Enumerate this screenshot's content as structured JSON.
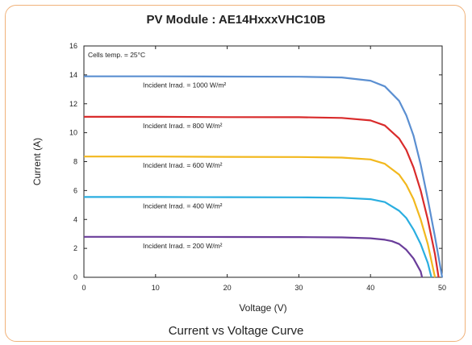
{
  "chart_data": {
    "type": "line",
    "title": "PV Module : AE14HxxxVHC10B",
    "caption": "Current vs Voltage Curve",
    "xlabel": "Voltage (V)",
    "ylabel": "Current (A)",
    "xlim": [
      0,
      50
    ],
    "ylim": [
      0,
      16
    ],
    "xticks": [
      0,
      10,
      20,
      30,
      40,
      50
    ],
    "yticks": [
      0,
      2,
      4,
      6,
      8,
      10,
      12,
      14,
      16
    ],
    "grid": false,
    "annotation": "Cells temp. = 25°C",
    "series": [
      {
        "name": "Incident Irrad. = 1000 W/m²",
        "color": "#5b8fd1",
        "isc": 13.9,
        "voc": 50.0,
        "x": [
          0,
          10,
          20,
          30,
          36,
          40,
          42,
          44,
          45,
          46,
          47,
          48,
          49,
          50
        ],
        "y": [
          13.9,
          13.9,
          13.88,
          13.87,
          13.82,
          13.6,
          13.2,
          12.2,
          11.2,
          9.8,
          7.8,
          5.4,
          2.8,
          0
        ]
      },
      {
        "name": "Incident Irrad. = 800 W/m²",
        "color": "#d92b2b",
        "isc": 11.1,
        "voc": 49.5,
        "x": [
          0,
          10,
          20,
          30,
          36,
          40,
          42,
          44,
          45,
          46,
          47,
          48,
          49,
          49.5
        ],
        "y": [
          11.1,
          11.1,
          11.08,
          11.07,
          11.02,
          10.85,
          10.5,
          9.6,
          8.8,
          7.6,
          6.0,
          4.0,
          1.6,
          0
        ]
      },
      {
        "name": "Incident Irrad. = 600 W/m²",
        "color": "#f2b81e",
        "isc": 8.35,
        "voc": 49.0,
        "x": [
          0,
          10,
          20,
          30,
          36,
          40,
          42,
          44,
          45,
          46,
          47,
          48,
          49
        ],
        "y": [
          8.35,
          8.35,
          8.33,
          8.32,
          8.28,
          8.15,
          7.85,
          7.1,
          6.4,
          5.4,
          4.0,
          2.3,
          0
        ]
      },
      {
        "name": "Incident Irrad. = 400 W/m²",
        "color": "#2aaee0",
        "isc": 5.55,
        "voc": 48.5,
        "x": [
          0,
          10,
          20,
          30,
          36,
          40,
          42,
          44,
          45,
          46,
          47,
          48,
          48.5
        ],
        "y": [
          5.55,
          5.55,
          5.54,
          5.53,
          5.5,
          5.4,
          5.2,
          4.6,
          4.1,
          3.3,
          2.3,
          1.0,
          0
        ]
      },
      {
        "name": "Incident Irrad. = 200 W/m²",
        "color": "#6a3d9a",
        "isc": 2.8,
        "voc": 47.2,
        "x": [
          0,
          10,
          20,
          30,
          36,
          40,
          42,
          43,
          44,
          45,
          46,
          47,
          47.2
        ],
        "y": [
          2.8,
          2.8,
          2.79,
          2.78,
          2.76,
          2.7,
          2.6,
          2.5,
          2.3,
          1.9,
          1.3,
          0.4,
          0
        ]
      }
    ]
  }
}
